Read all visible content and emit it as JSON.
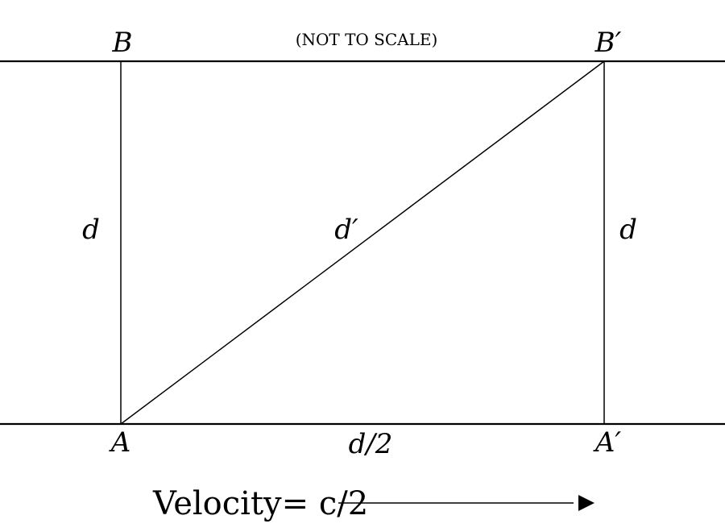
{
  "note": "(NOT TO SCALE)",
  "points": {
    "B": "B",
    "B_prime": "B′",
    "A": "A",
    "A_prime": "A′"
  },
  "segments": {
    "left_vertical": "d",
    "diagonal": "d′",
    "right_vertical": "d",
    "bottom": "d/2"
  },
  "velocity_label": "Velocity= c/2"
}
